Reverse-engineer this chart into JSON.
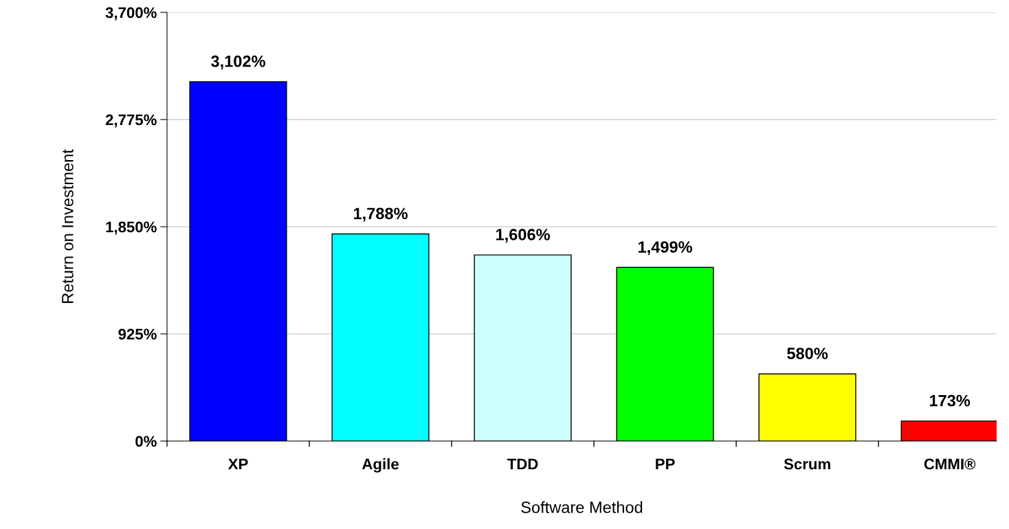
{
  "chart_data": {
    "type": "bar",
    "xlabel": "Software Method",
    "ylabel": "Return on Investment",
    "categories": [
      "XP",
      "Agile",
      "TDD",
      "PP",
      "Scrum",
      "CMMI®"
    ],
    "values": [
      3102,
      1788,
      1606,
      1499,
      580,
      173
    ],
    "colors": [
      "#0000ff",
      "#00ffff",
      "#ccffff",
      "#00ff00",
      "#ffff00",
      "#ff0000"
    ],
    "value_labels": [
      "3,102%",
      "1,788%",
      "1,606%",
      "1,499%",
      "580%",
      "173%"
    ],
    "ylim": [
      0,
      3700
    ],
    "yticks": [
      {
        "value": 0,
        "label": "0%"
      },
      {
        "value": 925,
        "label": "925%"
      },
      {
        "value": 1850,
        "label": "1,850%"
      },
      {
        "value": 2775,
        "label": "2,775%"
      },
      {
        "value": 3700,
        "label": "3,700%"
      }
    ],
    "grid": "y"
  }
}
